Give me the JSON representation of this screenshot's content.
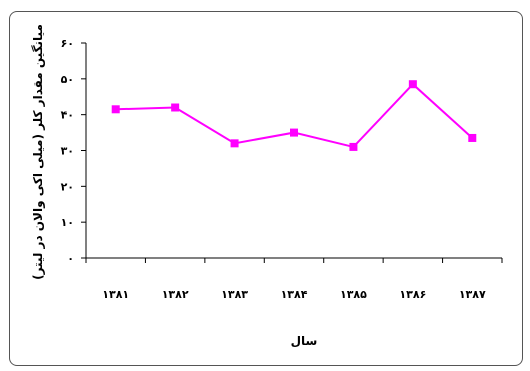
{
  "chart_data": {
    "type": "line",
    "title": "",
    "xlabel": "سال",
    "ylabel": "میانگین مقدار کلر (میلی اکی والان در لیتر)",
    "categories": [
      "۱۳۸۱",
      "۱۳۸۲",
      "۱۳۸۳",
      "۱۳۸۴",
      "۱۳۸۵",
      "۱۳۸۶",
      "۱۳۸۷"
    ],
    "values": [
      41.5,
      42,
      32,
      35,
      31,
      48.5,
      33.5
    ],
    "ylim": [
      0,
      60
    ],
    "yticks": [
      0,
      10,
      20,
      30,
      40,
      50,
      60
    ],
    "ytick_labels": [
      "۰",
      "۱۰",
      "۲۰",
      "۳۰",
      "۴۰",
      "۵۰",
      "۶۰"
    ],
    "series_color": "#ff00ff",
    "grid": false,
    "legend": "none"
  }
}
